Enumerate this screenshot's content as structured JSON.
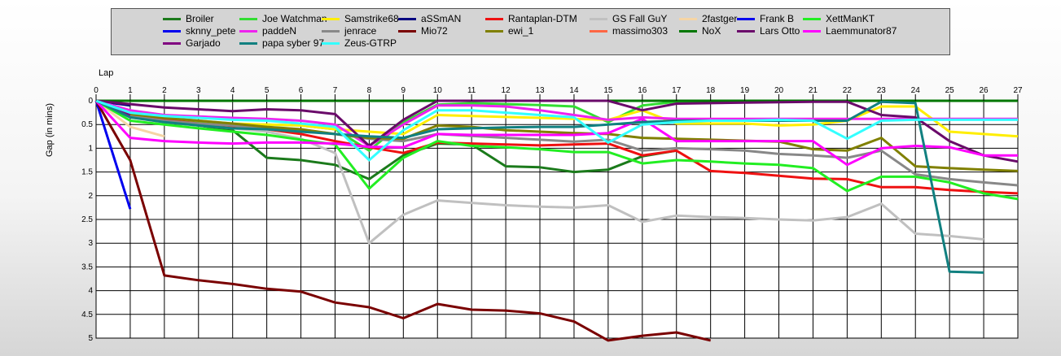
{
  "chart_data": {
    "type": "line",
    "title": "",
    "xlabel": "Lap",
    "ylabel": "Gap (in mins)",
    "xlim": [
      0,
      27
    ],
    "ylim": [
      0,
      5
    ],
    "y_inverted": true,
    "grid": true,
    "legend_position": "top",
    "x_ticks": [
      "0",
      "1",
      "2",
      "3",
      "4",
      "5",
      "6",
      "7",
      "8",
      "9",
      "10",
      "11",
      "12",
      "13",
      "14",
      "15",
      "16",
      "17",
      "18",
      "19",
      "20",
      "21",
      "22",
      "23",
      "24",
      "25",
      "26",
      "27"
    ],
    "y_ticks": [
      {
        "value": 0,
        "label": "0"
      },
      {
        "value": 0.5,
        "label": "0.5"
      },
      {
        "value": 1,
        "label": "1"
      },
      {
        "value": 1.5,
        "label": "1.5"
      },
      {
        "value": 2,
        "label": "2"
      },
      {
        "value": 2.5,
        "label": "2.5"
      },
      {
        "value": 3,
        "label": "3"
      },
      {
        "value": 3.5,
        "label": "3.5"
      },
      {
        "value": 4,
        "label": "4"
      },
      {
        "value": 4.5,
        "label": "4.5"
      },
      {
        "value": 5,
        "label": "5"
      }
    ],
    "series": [
      {
        "name": "Broiler",
        "color": "#1b7a1b",
        "values": [
          0,
          0.3,
          0.42,
          0.52,
          0.62,
          1.2,
          1.25,
          1.35,
          1.65,
          1.15,
          0.9,
          0.92,
          1.38,
          1.4,
          1.5,
          1.45,
          1.17,
          1.05,
          null,
          null,
          null,
          null,
          null,
          null,
          null,
          null,
          null,
          null
        ]
      },
      {
        "name": "Joe Watchman",
        "color": "#33dd33",
        "values": [
          0,
          0.3,
          0.4,
          0.45,
          0.5,
          0.5,
          0.52,
          0.6,
          1.05,
          0.45,
          0.08,
          0.05,
          0.07,
          0.09,
          0.12,
          0.45,
          0.1,
          0.02,
          0,
          0,
          0,
          0,
          null,
          null,
          null,
          null,
          null,
          null
        ]
      },
      {
        "name": "Samstrike68",
        "color": "#ffee00",
        "values": [
          0,
          0.28,
          0.36,
          0.42,
          0.48,
          0.5,
          0.52,
          0.6,
          0.65,
          0.7,
          0.3,
          0.32,
          0.34,
          0.36,
          0.38,
          0.4,
          0.2,
          0.48,
          0.48,
          0.48,
          0.52,
          0.5,
          0.42,
          0.12,
          0.12,
          0.65,
          0.7,
          0.75
        ]
      },
      {
        "name": "aSSmAN",
        "color": "#000080",
        "values": [
          0,
          0.1,
          null,
          null,
          null,
          null,
          null,
          null,
          null,
          null,
          null,
          null,
          null,
          null,
          null,
          null,
          null,
          null,
          null,
          null,
          null,
          null,
          null,
          null,
          null,
          null,
          null,
          null
        ]
      },
      {
        "name": "Rantaplan-DTM",
        "color": "#ee1111",
        "values": [
          0,
          0.3,
          0.4,
          0.48,
          0.55,
          0.6,
          0.7,
          0.85,
          0.98,
          1.1,
          0.88,
          0.9,
          0.92,
          0.94,
          0.92,
          0.9,
          1.15,
          1.05,
          1.48,
          1.52,
          1.58,
          1.64,
          1.65,
          1.82,
          1.82,
          1.88,
          1.92,
          1.95
        ]
      },
      {
        "name": "GS Fall GuY",
        "color": "#c0c0c0",
        "values": [
          0,
          0.35,
          0.45,
          0.52,
          0.58,
          0.65,
          0.8,
          1.1,
          3,
          2.4,
          2.1,
          2.15,
          2.2,
          2.23,
          2.25,
          2.2,
          2.55,
          2.42,
          2.45,
          2.47,
          2.5,
          2.52,
          2.45,
          2.17,
          2.8,
          2.85,
          2.92,
          null
        ]
      },
      {
        "name": "2fastger",
        "color": "#f5d5a5",
        "values": [
          0,
          0.55,
          0.75,
          null,
          null,
          null,
          null,
          null,
          null,
          null,
          null,
          null,
          null,
          null,
          null,
          null,
          null,
          null,
          null,
          null,
          null,
          null,
          null,
          null,
          null,
          null,
          null,
          null
        ]
      },
      {
        "name": "Frank B",
        "color": "#0000ee",
        "values": [
          0,
          null,
          null,
          null,
          null,
          null,
          null,
          null,
          null,
          null,
          null,
          null,
          null,
          null,
          null,
          null,
          null,
          null,
          null,
          null,
          null,
          null,
          null,
          null,
          null,
          null,
          null,
          null
        ]
      },
      {
        "name": "XettManKT",
        "color": "#22ee22",
        "values": [
          0,
          0.42,
          0.5,
          0.58,
          0.65,
          0.72,
          0.82,
          0.92,
          1.85,
          1.2,
          0.85,
          0.95,
          0.98,
          1.02,
          1.08,
          1.08,
          1.32,
          1.25,
          1.28,
          1.32,
          1.35,
          1.42,
          1.9,
          1.6,
          1.6,
          1.72,
          1.95,
          2.07
        ]
      },
      {
        "name": "sknny_pete",
        "color": "#0000ee",
        "values": [
          0,
          2.28,
          null,
          null,
          null,
          null,
          null,
          null,
          null,
          null,
          null,
          null,
          null,
          null,
          null,
          null,
          null,
          null,
          null,
          null,
          null,
          null,
          null,
          null,
          null,
          null,
          null,
          null
        ]
      },
      {
        "name": "paddeN",
        "color": "#ee22ee",
        "values": [
          0,
          0.2,
          0.3,
          0.33,
          0.36,
          0.38,
          0.42,
          0.5,
          0.95,
          0.5,
          0.1,
          0.1,
          0.12,
          0.2,
          0.3,
          0.4,
          0.35,
          0.38,
          0.38,
          0.38,
          0.38,
          0.38,
          0.38,
          0.38,
          0.38,
          0.38,
          0.38,
          0.38
        ]
      },
      {
        "name": "jenrace",
        "color": "#888888",
        "values": [
          0,
          0.32,
          0.42,
          0.48,
          0.52,
          0.6,
          0.62,
          0.7,
          0.8,
          0.85,
          0.7,
          0.74,
          0.78,
          0.82,
          0.86,
          0.82,
          1.05,
          1.0,
          1.02,
          1.05,
          1.12,
          1.15,
          1.2,
          1.05,
          1.55,
          1.65,
          1.72,
          1.78
        ]
      },
      {
        "name": "Mio72",
        "color": "#7a0000",
        "values": [
          0,
          1.25,
          3.68,
          3.78,
          3.86,
          3.96,
          4.02,
          4.25,
          4.35,
          4.58,
          4.28,
          4.4,
          4.42,
          4.48,
          4.65,
          5.2,
          4.95,
          4.88,
          5.05,
          null,
          null,
          null,
          null,
          null,
          null,
          null,
          null,
          null
        ]
      },
      {
        "name": "ewi_1",
        "color": "#808000",
        "values": [
          0,
          0.28,
          0.36,
          0.42,
          0.48,
          0.55,
          0.6,
          0.7,
          0.78,
          0.8,
          0.52,
          0.55,
          0.62,
          0.65,
          0.68,
          0.7,
          0.78,
          0.8,
          0.82,
          0.84,
          0.86,
          1.02,
          1.05,
          0.78,
          1.38,
          1.42,
          1.45,
          1.48
        ]
      },
      {
        "name": "massimo303",
        "color": "#ff6644",
        "values": [
          0,
          null,
          null,
          null,
          null,
          null,
          null,
          null,
          null,
          null,
          null,
          null,
          null,
          null,
          null,
          null,
          null,
          null,
          null,
          null,
          null,
          null,
          null,
          null,
          null,
          null,
          null,
          null
        ]
      },
      {
        "name": "NoX",
        "color": "#007700",
        "values": [
          0,
          0,
          0,
          0,
          0,
          0,
          0,
          0,
          0,
          0,
          0,
          0,
          0,
          0,
          0,
          0,
          0,
          0,
          0,
          0,
          0,
          0,
          0,
          0,
          0,
          0,
          0,
          0
        ]
      },
      {
        "name": "Lars Otto",
        "color": "#6a0a6a",
        "values": [
          0,
          0.07,
          0.14,
          0.18,
          0.22,
          0.18,
          0.2,
          0.28,
          0.95,
          0.4,
          0,
          0,
          0,
          0,
          0,
          0,
          0.2,
          0.06,
          0.05,
          0.04,
          0.03,
          0.02,
          0.02,
          0.3,
          0.35,
          0.85,
          1.15,
          1.28
        ]
      },
      {
        "name": "Laemmunator87",
        "color": "#ff00ff",
        "values": [
          0,
          0.78,
          0.85,
          0.88,
          0.9,
          0.88,
          0.88,
          0.9,
          0.97,
          0.98,
          0.7,
          0.72,
          0.72,
          0.72,
          0.72,
          0.68,
          0.38,
          0.85,
          0.85,
          0.85,
          0.85,
          0.85,
          1.35,
          1.0,
          0.95,
          0.98,
          1.15,
          1.15
        ]
      },
      {
        "name": "Garjado",
        "color": "#800080",
        "values": [
          0,
          0.3,
          null,
          null,
          null,
          null,
          null,
          null,
          null,
          null,
          null,
          null,
          null,
          null,
          null,
          null,
          null,
          null,
          null,
          null,
          null,
          null,
          null,
          null,
          null,
          null,
          null,
          null
        ]
      },
      {
        "name": "papa syber 97",
        "color": "#118080",
        "values": [
          0,
          0.35,
          0.45,
          0.52,
          0.58,
          0.6,
          0.65,
          0.7,
          0.75,
          0.78,
          0.6,
          0.58,
          0.56,
          0.55,
          0.55,
          0.5,
          0.45,
          0.42,
          0.42,
          0.42,
          0.42,
          0.42,
          0.42,
          0.02,
          0.05,
          3.6,
          3.62,
          null
        ]
      },
      {
        "name": "Zeus-GTRP",
        "color": "#33ffff",
        "values": [
          0,
          0.25,
          0.32,
          0.36,
          0.4,
          0.42,
          0.48,
          0.55,
          1.25,
          0.62,
          0.2,
          0.2,
          0.25,
          0.3,
          0.35,
          0.88,
          0.5,
          0.45,
          0.42,
          0.42,
          0.4,
          0.42,
          0.8,
          0.42,
          0.4,
          0.4,
          0.4,
          0.4
        ]
      }
    ]
  }
}
